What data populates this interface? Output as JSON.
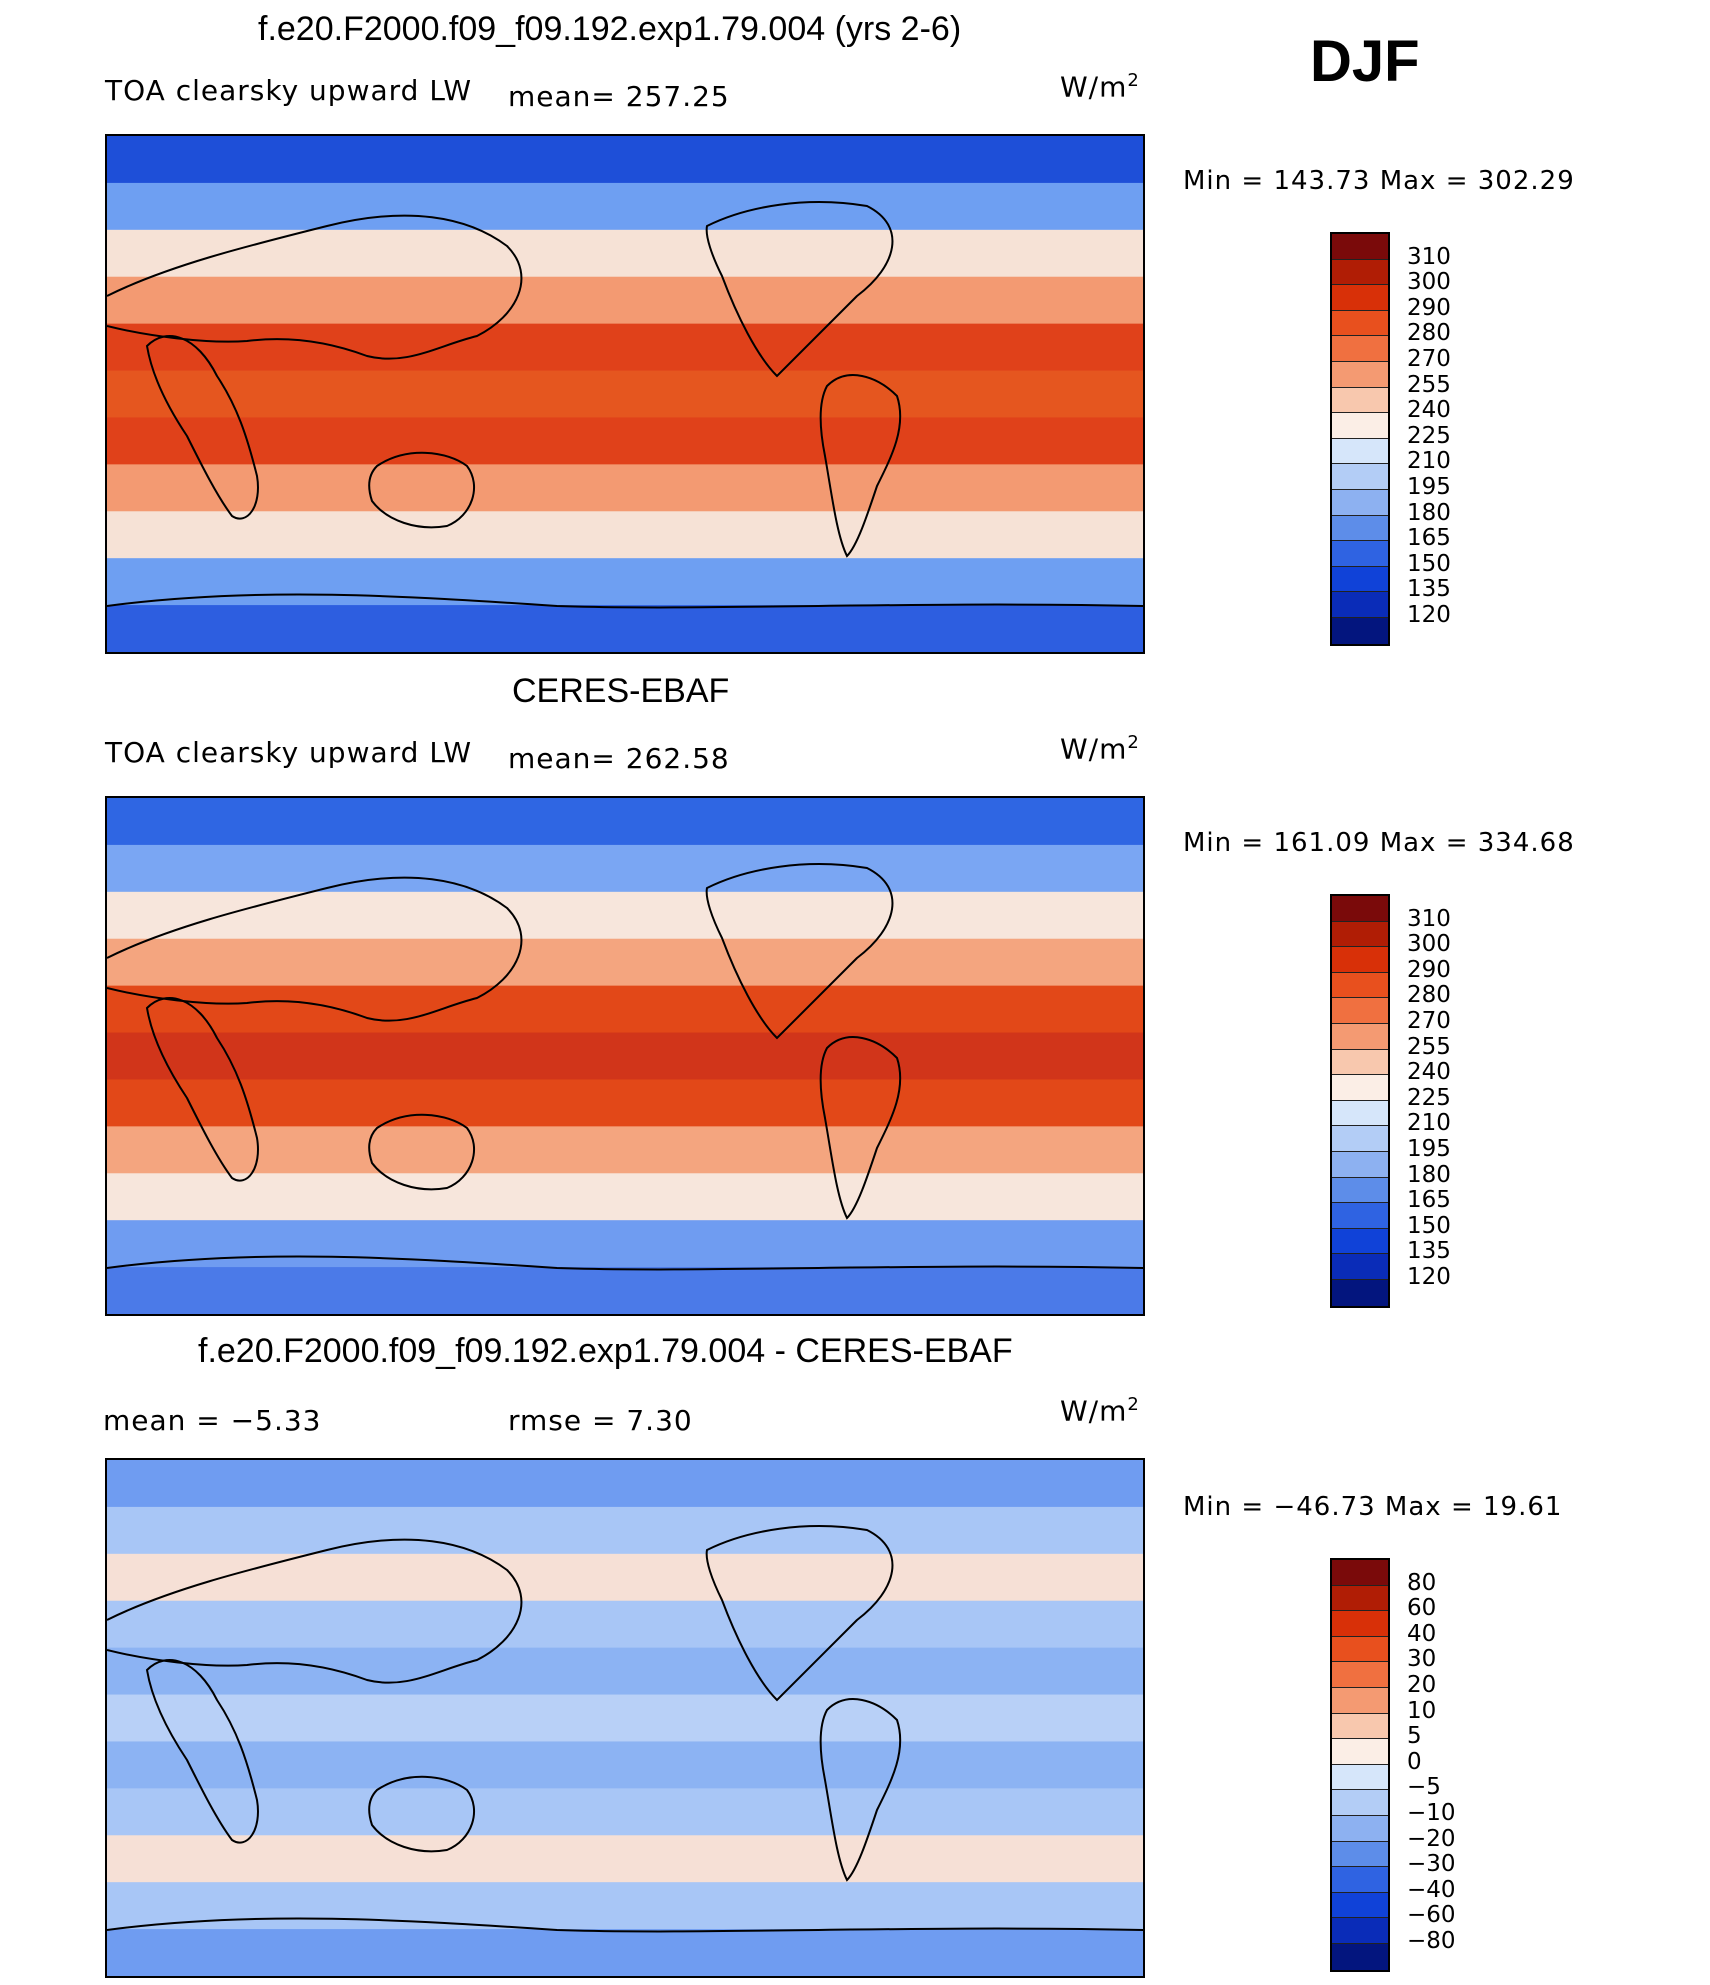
{
  "season": "DJF",
  "panels": [
    {
      "title": "f.e20.F2000.f09_f09.192.exp1.79.004 (yrs 2-6)",
      "left_label": "TOA clearsky upward LW",
      "center_label": "mean=  257.25",
      "units": "W/m",
      "units_sup": "2",
      "minmax": "Min  =  143.73  Max  =  302.29",
      "bands": [
        "#1e4fd8",
        "#6e9ff2",
        "#f6e2d6",
        "#f39a72",
        "#e0411a",
        "#e5561f",
        "#e0411a",
        "#f39a72",
        "#f6e2d6",
        "#6e9ff2",
        "#2d5ee0"
      ]
    },
    {
      "title": "CERES-EBAF",
      "left_label": "TOA clearsky upward LW",
      "center_label": "mean=  262.58",
      "units": "W/m",
      "units_sup": "2",
      "minmax": "Min  =  161.09  Max  =  334.68",
      "bands": [
        "#2f66e3",
        "#7aa6f3",
        "#f7e6dc",
        "#f4a57f",
        "#e24818",
        "#d1351a",
        "#e24818",
        "#f4a57f",
        "#f7e6dc",
        "#6f9cf1",
        "#4b7ae8"
      ]
    },
    {
      "title": "f.e20.F2000.f09_f09.192.exp1.79.004 - CERES-EBAF",
      "left_label": "mean  =    −5.33",
      "center_label": "rmse  =     7.30",
      "units": "W/m",
      "units_sup": "2",
      "minmax": "Min  =  −46.73  Max  =    19.61",
      "bands": [
        "#6f9cf1",
        "#a8c6f6",
        "#f6e0d6",
        "#a8c6f6",
        "#8cb3f3",
        "#b8d0f7",
        "#8cb3f3",
        "#a8c6f6",
        "#f6e0d6",
        "#a8c6f6",
        "#6f9cf1"
      ]
    }
  ],
  "colorbars": {
    "absolute": {
      "colors": [
        "#7a0a0a",
        "#b01d05",
        "#d83008",
        "#e8501e",
        "#f07040",
        "#f49a72",
        "#f8c8ae",
        "#fbeee6",
        "#d6e6fa",
        "#b3cdf6",
        "#8db1f1",
        "#5d8de9",
        "#2f63e2",
        "#1042d8",
        "#0a2cb8",
        "#03157e"
      ],
      "labels": [
        "310",
        "300",
        "290",
        "280",
        "270",
        "255",
        "240",
        "225",
        "210",
        "195",
        "180",
        "165",
        "150",
        "135",
        "120"
      ]
    },
    "difference": {
      "colors": [
        "#7a0a0a",
        "#b01d05",
        "#d83008",
        "#e8501e",
        "#f07040",
        "#f49a72",
        "#f8c8ae",
        "#fbeee6",
        "#d6e6fa",
        "#b3cdf6",
        "#8db1f1",
        "#5d8de9",
        "#2f63e2",
        "#1042d8",
        "#0a2cb8",
        "#03157e"
      ],
      "labels": [
        "80",
        "60",
        "40",
        "30",
        "20",
        "10",
        "5",
        "0",
        "−5",
        "−10",
        "−20",
        "−30",
        "−40",
        "−60",
        "−80"
      ]
    }
  }
}
